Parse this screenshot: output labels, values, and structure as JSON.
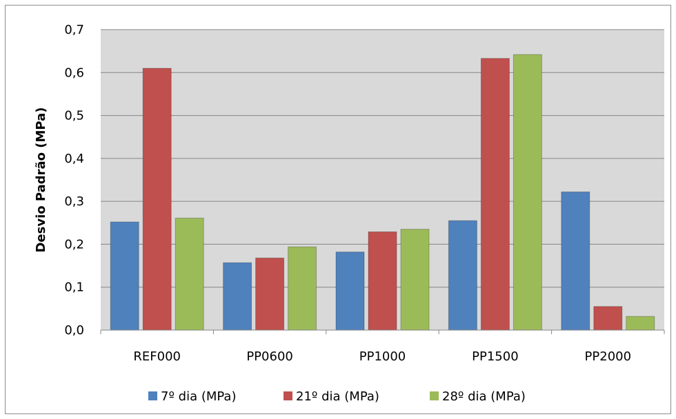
{
  "chart_data": {
    "type": "bar",
    "ylabel": "Desvio Padrão (MPa)",
    "xlabel": "",
    "ylim": [
      0,
      0.7
    ],
    "ytick_labels": [
      "0,0",
      "0,1",
      "0,2",
      "0,3",
      "0,4",
      "0,5",
      "0,6",
      "0,7"
    ],
    "categories": [
      "REF000",
      "PP0600",
      "PP1000",
      "PP1500",
      "PP2000"
    ],
    "series": [
      {
        "name": "7º dia (MPa)",
        "color": "#4f81bd",
        "values": [
          0.252,
          0.157,
          0.182,
          0.255,
          0.322
        ]
      },
      {
        "name": "21º dia (MPa)",
        "color": "#c0504d",
        "values": [
          0.61,
          0.168,
          0.229,
          0.633,
          0.055
        ]
      },
      {
        "name": "28º dia (MPa)",
        "color": "#9bbb59",
        "values": [
          0.261,
          0.194,
          0.235,
          0.642,
          0.032
        ]
      }
    ],
    "grid": true,
    "legend_position": "bottom",
    "plot_background": "#d9d9d9"
  }
}
